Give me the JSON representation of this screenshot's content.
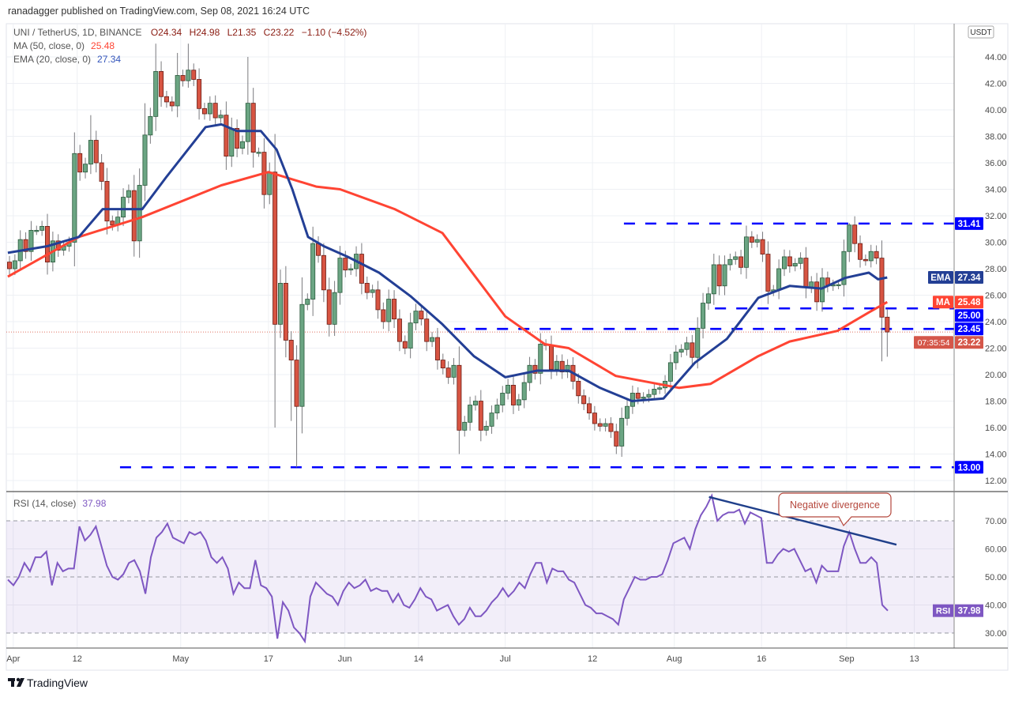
{
  "header": {
    "published": "ranadagger published on TradingView.com, Sep 08, 2021 16:24 UTC"
  },
  "legend": {
    "symbol": "UNI / TetherUS, 1D, BINANCE",
    "open": "O24.34",
    "high": "H24.98",
    "low": "L21.35",
    "close": "C23.22",
    "change": "−1.10 (−4.52%)",
    "ma_label": "MA (50, close, 0)",
    "ma_value": "25.48",
    "ema_label": "EMA (20, close, 0)",
    "ema_value": "27.34",
    "rsi_label": "RSI (14, close)",
    "rsi_value": "37.98"
  },
  "footer": {
    "brand": "TradingView"
  },
  "colors": {
    "up": "#6ba583",
    "down": "#d75442",
    "ma": "#ff4433",
    "ema": "#233f95",
    "levels": "#0000ff",
    "rsi": "#7e57c2",
    "last": "#d5574a"
  },
  "chart_data": [
    {
      "type": "candlestick",
      "title": "UNI / TetherUS, 1D, BINANCE",
      "currency": "USDT",
      "ylim": [
        12,
        46
      ],
      "y_ticks": [
        "44.00",
        "42.00",
        "40.00",
        "38.00",
        "36.00",
        "34.00",
        "32.00",
        "30.00",
        "28.00",
        "26.00",
        "24.00",
        "22.00",
        "20.00",
        "18.00",
        "16.00",
        "14.00",
        "12.00"
      ],
      "x_ticks": [
        {
          "label": "Apr",
          "index": 0.7
        },
        {
          "label": "12",
          "index": 12.5
        },
        {
          "label": "May",
          "index": 31.6
        },
        {
          "label": "17",
          "index": 47.8
        },
        {
          "label": "Jun",
          "index": 61.9
        },
        {
          "label": "14",
          "index": 75.5
        },
        {
          "label": "Jul",
          "index": 91.5
        },
        {
          "label": "12",
          "index": 107.6
        },
        {
          "label": "Aug",
          "index": 122.7
        },
        {
          "label": "16",
          "index": 138.8
        },
        {
          "label": "Sep",
          "index": 154.5
        },
        {
          "label": "13",
          "index": 167
        }
      ],
      "first_open": 28.5,
      "closes": [
        28.0,
        28.6,
        30.2,
        29.3,
        30.9,
        30.9,
        31.2,
        28.5,
        30.1,
        29.4,
        29.7,
        30.0,
        36.7,
        35.3,
        35.9,
        37.7,
        36.0,
        34.6,
        31.6,
        31.3,
        31.9,
        33.4,
        33.9,
        30.1,
        34.3,
        38.1,
        39.5,
        42.9,
        41.0,
        40.6,
        40.3,
        42.6,
        42.2,
        43.0,
        42.3,
        40.1,
        39.7,
        40.5,
        39.4,
        39.6,
        36.5,
        38.6,
        37.1,
        37.6,
        40.5,
        36.8,
        36.8,
        33.6,
        35.3,
        23.8,
        26.9,
        22.6,
        21.1,
        17.6,
        25.3,
        25.7,
        29.9,
        29.0,
        26.4,
        23.8,
        26.2,
        28.8,
        27.9,
        28.0,
        29.1,
        26.9,
        26.2,
        26.4,
        24.9,
        24.0,
        25.7,
        24.2,
        22.5,
        22.0,
        23.9,
        24.8,
        24.2,
        22.5,
        22.8,
        21.1,
        20.5,
        19.8,
        20.7,
        15.8,
        16.4,
        17.7,
        18.0,
        15.8,
        16.1,
        17.1,
        17.7,
        18.6,
        19.2,
        17.7,
        18.1,
        19.4,
        20.7,
        20.1,
        22.3,
        22.2,
        20.4,
        21.0,
        20.2,
        20.7,
        19.5,
        18.4,
        17.8,
        17.1,
        16.3,
        16.1,
        16.3,
        15.7,
        14.6,
        16.7,
        17.6,
        18.6,
        18.2,
        18.3,
        18.5,
        18.9,
        19.0,
        19.5,
        20.9,
        21.7,
        21.9,
        22.4,
        21.3,
        23.5,
        25.4,
        26.1,
        28.3,
        26.7,
        28.3,
        28.7,
        28.9,
        28.1,
        30.4,
        30.0,
        30.2,
        29.1,
        26.3,
        26.4,
        28.0,
        28.9,
        28.2,
        28.4,
        28.8,
        26.6,
        27.0,
        25.5,
        27.3,
        26.7,
        26.8,
        26.8,
        29.3,
        31.3,
        29.9,
        28.7,
        28.6,
        29.3,
        28.8,
        24.34,
        23.22
      ],
      "wick_overrides": [
        {
          "index": 12,
          "high": 38.3
        },
        {
          "index": 15,
          "high": 39.6
        },
        {
          "index": 25,
          "high": 40.5
        },
        {
          "index": 27,
          "high": 45.0
        },
        {
          "index": 31,
          "high": 44.3
        },
        {
          "index": 33,
          "high": 45.0
        },
        {
          "index": 44,
          "high": 44.0
        },
        {
          "index": 49,
          "low": 16.0
        },
        {
          "index": 52,
          "low": 16.5
        },
        {
          "index": 53,
          "low": 13.0
        },
        {
          "index": 83,
          "low": 14.0
        },
        {
          "index": 112,
          "low": 14.0
        },
        {
          "index": 155,
          "high": 31.45
        },
        {
          "index": 161,
          "low": 21.0
        },
        {
          "index": 162,
          "open": 24.34,
          "high": 24.98,
          "low": 21.35
        }
      ],
      "series": [
        {
          "name": "MA (50, close, 0)",
          "color_key": "ma",
          "last": 25.48,
          "points": [
            [
              -0.3,
              27.4
            ],
            [
              12.8,
              30.4
            ],
            [
              24.5,
              31.9
            ],
            [
              39.1,
              34.3
            ],
            [
              47.8,
              35.3
            ],
            [
              56.6,
              34.2
            ],
            [
              61,
              34.0
            ],
            [
              71.1,
              32.5
            ],
            [
              79.9,
              30.7
            ],
            [
              91.5,
              24.4
            ],
            [
              98.8,
              22.3
            ],
            [
              103.2,
              22.0
            ],
            [
              111.9,
              19.9
            ],
            [
              123.6,
              19.0
            ],
            [
              129.4,
              19.3
            ],
            [
              138.2,
              21.4
            ],
            [
              144,
              22.5
            ],
            [
              152.8,
              23.3
            ],
            [
              158.6,
              24.7
            ],
            [
              162,
              25.48
            ]
          ]
        },
        {
          "name": "EMA (20, close, 0)",
          "color_key": "ema",
          "last": 27.34,
          "points": [
            [
              -0.3,
              29.2
            ],
            [
              7,
              29.7
            ],
            [
              12.8,
              30.4
            ],
            [
              17.2,
              32.5
            ],
            [
              24.5,
              32.5
            ],
            [
              28.9,
              34.9
            ],
            [
              36.2,
              38.7
            ],
            [
              39.1,
              38.9
            ],
            [
              42,
              38.4
            ],
            [
              46.4,
              38.4
            ],
            [
              49.3,
              37.0
            ],
            [
              52.2,
              34.0
            ],
            [
              55.1,
              30.4
            ],
            [
              58,
              29.7
            ],
            [
              62.4,
              28.9
            ],
            [
              68.2,
              27.7
            ],
            [
              74.1,
              25.9
            ],
            [
              79.9,
              23.8
            ],
            [
              85.7,
              21.4
            ],
            [
              91.5,
              19.8
            ],
            [
              97.4,
              20.3
            ],
            [
              103.2,
              20.3
            ],
            [
              109,
              19.0
            ],
            [
              114.9,
              18.0
            ],
            [
              120.7,
              18.2
            ],
            [
              126.5,
              20.9
            ],
            [
              132.4,
              22.7
            ],
            [
              138.2,
              25.8
            ],
            [
              144,
              26.7
            ],
            [
              149.9,
              26.5
            ],
            [
              154.2,
              27.3
            ],
            [
              158.6,
              27.7
            ],
            [
              160.3,
              27.2
            ],
            [
              162,
              27.34
            ]
          ]
        }
      ],
      "levels": [
        {
          "value": 31.41,
          "label": "31.41",
          "from_index": 113.4
        },
        {
          "value": 25.0,
          "label": "25.00",
          "from_index": 130.2
        },
        {
          "value": 23.45,
          "label": "23.45",
          "from_index": 82.1
        },
        {
          "value": 13.0,
          "label": "13.00",
          "from_index": 20.4
        }
      ],
      "price_labels": {
        "ema": "EMA",
        "ema_value": "27.34",
        "ma": "MA",
        "ma_value": "25.48",
        "last_value": "23.22",
        "countdown": "07:35:54",
        "currency_badge": "USDT"
      }
    },
    {
      "type": "line",
      "title": "RSI (14, close)",
      "ylim": [
        25,
        80
      ],
      "y_ticks": [
        "70.00",
        "60.00",
        "50.00",
        "40.00",
        "30.00"
      ],
      "band": [
        30,
        70
      ],
      "last": 37.98,
      "label": "RSI",
      "values": [
        49,
        47,
        50,
        55,
        52,
        57,
        57,
        59,
        47,
        55,
        52,
        53,
        53,
        68,
        63,
        65,
        68,
        61,
        54,
        50,
        49,
        51,
        55,
        56,
        52,
        44,
        57,
        64,
        66,
        69,
        64,
        63,
        62,
        66,
        65,
        66,
        63,
        57,
        55,
        57,
        53,
        44,
        48,
        46,
        46,
        56,
        47,
        46,
        43,
        28,
        41,
        38,
        32,
        30,
        27,
        43,
        48,
        46,
        44,
        43,
        40,
        45,
        48,
        46,
        47,
        49,
        45,
        46,
        45,
        45,
        41,
        44,
        40,
        39,
        42,
        46,
        43,
        42,
        38,
        39,
        40,
        36,
        33,
        35,
        39,
        36,
        36,
        38,
        41,
        43,
        46,
        43,
        45,
        48,
        46,
        51,
        55,
        55,
        48,
        53,
        52,
        52,
        49,
        48,
        44,
        40,
        39,
        37,
        37,
        36,
        35,
        33,
        42,
        46,
        50,
        49,
        49,
        50,
        50,
        51,
        56,
        62,
        63,
        64,
        60,
        67,
        72,
        75,
        79,
        70,
        72,
        73,
        73,
        74,
        69,
        73,
        72,
        71,
        55,
        55,
        58,
        60,
        59,
        60,
        56,
        52,
        53,
        48,
        54,
        52,
        52,
        52,
        61,
        66,
        60,
        55,
        55,
        57,
        55,
        40,
        37.98
      ],
      "trendline": {
        "from": [
          129.1,
          78.5
        ],
        "to": [
          163.7,
          61.5
        ]
      },
      "annotation": {
        "text": "Negative divergence",
        "points_to": [
          154.3,
          66
        ]
      }
    }
  ]
}
